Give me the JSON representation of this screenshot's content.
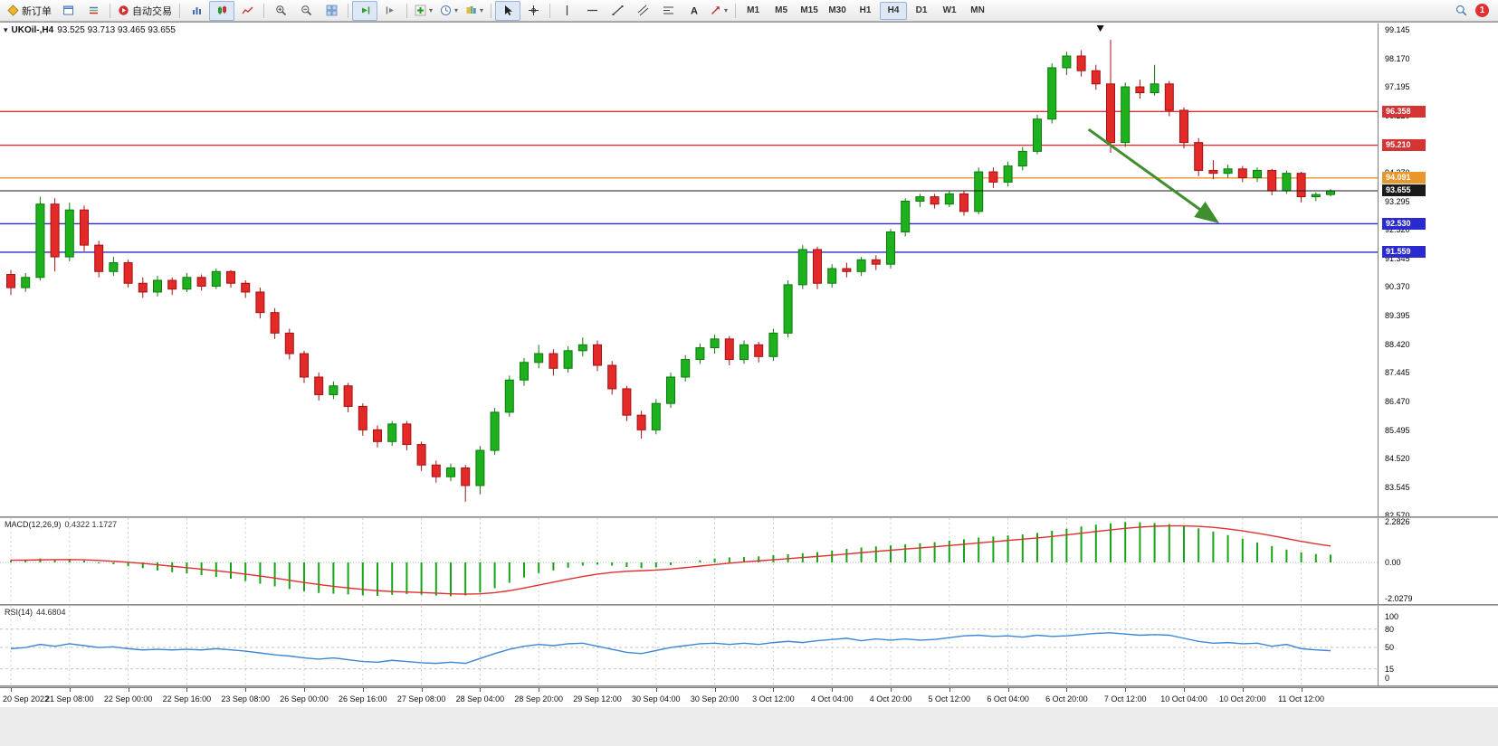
{
  "toolbar": {
    "new_order_label": "新订单",
    "autotrading_label": "自动交易",
    "timeframes": [
      "M1",
      "M5",
      "M15",
      "M30",
      "H1",
      "H4",
      "D1",
      "W1",
      "MN"
    ],
    "active_timeframe": "H4",
    "notification_badge": "1"
  },
  "main_chart": {
    "symbol_title": "UKOil-,H4",
    "ohlc_text": "93.525 93.713 93.465 93.655"
  },
  "macd_panel": {
    "label": "MACD(12,26,9)",
    "values": "0.4322 1.1727"
  },
  "rsi_panel": {
    "label": "RSI(14)",
    "value": "44.6804"
  },
  "chart_data": [
    {
      "type": "candlestick",
      "title": "UKOil H4",
      "bars_per_label": 4,
      "x_labels": [
        "20 Sep 2022",
        "21 Sep 08:00",
        "22 Sep 00:00",
        "22 Sep 16:00",
        "23 Sep 08:00",
        "26 Sep 00:00",
        "26 Sep 16:00",
        "27 Sep 08:00",
        "28 Sep 04:00",
        "28 Sep 20:00",
        "29 Sep 12:00",
        "30 Sep 04:00",
        "30 Sep 20:00",
        "3 Oct 12:00",
        "4 Oct 04:00",
        "4 Oct 20:00",
        "5 Oct 12:00",
        "6 Oct 04:00",
        "6 Oct 20:00",
        "7 Oct 12:00",
        "10 Oct 04:00",
        "10 Oct 20:00",
        "11 Oct 12:00"
      ],
      "ylim": [
        82.55,
        99.36
      ],
      "y_ticks": [
        "99.145",
        "98.170",
        "97.195",
        "96.220",
        "95.245",
        "94.270",
        "93.295",
        "92.320",
        "91.345",
        "90.370",
        "89.395",
        "88.420",
        "87.445",
        "86.470",
        "85.495",
        "84.520",
        "83.545",
        "82.570"
      ],
      "up_color": "#1db11d",
      "down_color": "#e42929",
      "candles": [
        [
          90.8,
          90.95,
          90.1,
          90.35
        ],
        [
          90.35,
          90.85,
          90.2,
          90.7
        ],
        [
          90.7,
          93.45,
          90.6,
          93.2
        ],
        [
          93.2,
          93.4,
          90.9,
          91.4
        ],
        [
          91.4,
          93.25,
          91.25,
          93.0
        ],
        [
          93.0,
          93.15,
          91.6,
          91.8
        ],
        [
          91.8,
          91.95,
          90.7,
          90.9
        ],
        [
          90.9,
          91.4,
          90.75,
          91.2
        ],
        [
          91.2,
          91.3,
          90.35,
          90.5
        ],
        [
          90.5,
          90.7,
          90.0,
          90.2
        ],
        [
          90.2,
          90.75,
          90.05,
          90.6
        ],
        [
          90.6,
          90.7,
          90.1,
          90.3
        ],
        [
          90.3,
          90.85,
          90.2,
          90.7
        ],
        [
          90.7,
          90.8,
          90.25,
          90.4
        ],
        [
          90.4,
          91.0,
          90.3,
          90.9
        ],
        [
          90.9,
          90.95,
          90.35,
          90.5
        ],
        [
          90.5,
          90.6,
          90.0,
          90.2
        ],
        [
          90.2,
          90.35,
          89.3,
          89.5
        ],
        [
          89.5,
          89.65,
          88.6,
          88.8
        ],
        [
          88.8,
          88.95,
          87.9,
          88.1
        ],
        [
          88.1,
          88.2,
          87.1,
          87.3
        ],
        [
          87.3,
          87.45,
          86.5,
          86.7
        ],
        [
          86.7,
          87.15,
          86.55,
          87.0
        ],
        [
          87.0,
          87.1,
          86.1,
          86.3
        ],
        [
          86.3,
          86.4,
          85.3,
          85.5
        ],
        [
          85.5,
          85.65,
          84.9,
          85.1
        ],
        [
          85.1,
          85.8,
          84.95,
          85.7
        ],
        [
          85.7,
          85.8,
          84.8,
          85.0
        ],
        [
          85.0,
          85.1,
          84.1,
          84.3
        ],
        [
          84.3,
          84.45,
          83.7,
          83.9
        ],
        [
          83.9,
          84.35,
          83.75,
          84.2
        ],
        [
          84.2,
          84.3,
          83.05,
          83.6
        ],
        [
          83.6,
          84.95,
          83.3,
          84.8
        ],
        [
          84.8,
          86.25,
          84.65,
          86.1
        ],
        [
          86.1,
          87.35,
          85.95,
          87.2
        ],
        [
          87.2,
          87.95,
          87.0,
          87.8
        ],
        [
          87.8,
          88.4,
          87.6,
          88.1
        ],
        [
          88.1,
          88.25,
          87.35,
          87.6
        ],
        [
          87.6,
          88.35,
          87.45,
          88.2
        ],
        [
          88.2,
          88.65,
          88.0,
          88.4
        ],
        [
          88.4,
          88.55,
          87.5,
          87.7
        ],
        [
          87.7,
          87.85,
          86.7,
          86.9
        ],
        [
          86.9,
          87.0,
          85.8,
          86.0
        ],
        [
          86.0,
          86.15,
          85.2,
          85.5
        ],
        [
          85.5,
          86.55,
          85.35,
          86.4
        ],
        [
          86.4,
          87.45,
          86.25,
          87.3
        ],
        [
          87.3,
          88.05,
          87.15,
          87.9
        ],
        [
          87.9,
          88.45,
          87.75,
          88.3
        ],
        [
          88.3,
          88.75,
          88.1,
          88.6
        ],
        [
          88.6,
          88.7,
          87.7,
          87.9
        ],
        [
          87.9,
          88.55,
          87.75,
          88.4
        ],
        [
          88.4,
          88.5,
          87.8,
          88.0
        ],
        [
          88.0,
          88.95,
          87.85,
          88.8
        ],
        [
          88.8,
          90.6,
          88.65,
          90.45
        ],
        [
          90.45,
          91.8,
          90.3,
          91.65
        ],
        [
          91.65,
          91.75,
          90.3,
          90.5
        ],
        [
          90.5,
          91.15,
          90.35,
          91.0
        ],
        [
          91.0,
          91.2,
          90.7,
          90.9
        ],
        [
          90.9,
          91.4,
          90.75,
          91.3
        ],
        [
          91.3,
          91.45,
          90.95,
          91.15
        ],
        [
          91.15,
          92.35,
          91.0,
          92.25
        ],
        [
          92.25,
          93.4,
          92.1,
          93.3
        ],
        [
          93.3,
          93.55,
          93.1,
          93.45
        ],
        [
          93.45,
          93.55,
          93.05,
          93.2
        ],
        [
          93.2,
          93.65,
          93.1,
          93.55
        ],
        [
          93.55,
          93.65,
          92.8,
          92.95
        ],
        [
          92.95,
          94.45,
          92.85,
          94.3
        ],
        [
          94.3,
          94.45,
          93.75,
          93.95
        ],
        [
          93.95,
          94.65,
          93.8,
          94.5
        ],
        [
          94.5,
          95.15,
          94.35,
          95.0
        ],
        [
          95.0,
          96.25,
          94.9,
          96.1
        ],
        [
          96.1,
          98.0,
          95.95,
          97.85
        ],
        [
          97.85,
          98.4,
          97.6,
          98.25
        ],
        [
          98.25,
          98.45,
          97.55,
          97.75
        ],
        [
          97.75,
          97.95,
          97.1,
          97.3
        ],
        [
          97.3,
          98.8,
          94.95,
          95.3
        ],
        [
          95.3,
          97.35,
          95.15,
          97.2
        ],
        [
          97.2,
          97.45,
          96.8,
          97.0
        ],
        [
          97.0,
          97.95,
          96.9,
          97.3
        ],
        [
          97.3,
          97.4,
          96.2,
          96.4
        ],
        [
          96.4,
          96.5,
          95.1,
          95.3
        ],
        [
          95.3,
          95.45,
          94.15,
          94.35
        ],
        [
          94.35,
          94.7,
          94.05,
          94.25
        ],
        [
          94.25,
          94.55,
          94.1,
          94.4
        ],
        [
          94.4,
          94.5,
          93.95,
          94.1
        ],
        [
          94.1,
          94.45,
          93.95,
          94.35
        ],
        [
          94.35,
          94.4,
          93.5,
          93.65
        ],
        [
          93.65,
          94.35,
          93.55,
          94.25
        ],
        [
          94.25,
          94.3,
          93.25,
          93.45
        ],
        [
          93.45,
          93.6,
          93.3,
          93.525
        ],
        [
          93.525,
          93.713,
          93.465,
          93.655
        ]
      ],
      "levels": [
        {
          "price": 96.358,
          "label": "96.358",
          "color": "#d53434"
        },
        {
          "price": 95.21,
          "label": "95.210",
          "color": "#d53434"
        },
        {
          "price": 94.091,
          "label": "94.091",
          "color": "#e8962e"
        },
        {
          "price": 92.53,
          "label": "92.530",
          "color": "#2a2ace"
        },
        {
          "price": 91.559,
          "label": "91.559",
          "color": "#2a2ace"
        }
      ],
      "current_price": {
        "price": 93.655,
        "label": "93.655",
        "color": "#1a1a1a"
      },
      "annotations": {
        "arrow": {
          "from_bar": 73.5,
          "from_price": 95.75,
          "to_bar": 82.2,
          "to_price": 92.62,
          "color": "#3f8f2f"
        },
        "high_marker_bar": 74.3
      }
    },
    {
      "type": "macd-histogram",
      "label": "MACD(12,26,9)",
      "current_values": "0.4322 1.1727",
      "ylim": [
        -2.344,
        2.493
      ],
      "y_ticks": [
        "2.2826",
        "0.00",
        "-2.0279"
      ],
      "signal_period": 9,
      "histogram_color": "#16a516",
      "signal_color": "#e03030",
      "histogram": [
        0.12,
        0.15,
        0.22,
        0.18,
        0.2,
        0.1,
        -0.05,
        -0.1,
        -0.22,
        -0.32,
        -0.45,
        -0.55,
        -0.62,
        -0.72,
        -0.82,
        -0.92,
        -1.05,
        -1.2,
        -1.35,
        -1.5,
        -1.62,
        -1.72,
        -1.76,
        -1.8,
        -1.85,
        -1.88,
        -1.82,
        -1.78,
        -1.82,
        -1.87,
        -1.9,
        -1.86,
        -1.7,
        -1.45,
        -1.15,
        -0.85,
        -0.6,
        -0.45,
        -0.3,
        -0.18,
        -0.12,
        -0.18,
        -0.26,
        -0.32,
        -0.28,
        -0.15,
        0.02,
        0.12,
        0.22,
        0.28,
        0.3,
        0.34,
        0.4,
        0.46,
        0.52,
        0.58,
        0.66,
        0.76,
        0.84,
        0.9,
        0.96,
        1.02,
        1.08,
        1.14,
        1.22,
        1.3,
        1.4,
        1.46,
        1.52,
        1.58,
        1.66,
        1.78,
        1.9,
        2.02,
        2.12,
        2.2,
        2.28,
        2.26,
        2.22,
        2.16,
        2.06,
        1.92,
        1.74,
        1.54,
        1.34,
        1.12,
        0.92,
        0.72,
        0.56,
        0.47,
        0.4322
      ]
    },
    {
      "type": "rsi-line",
      "label": "RSI(14)",
      "current_value": "44.6804",
      "ylim": [
        -12,
        118
      ],
      "y_ticks": [
        "100",
        "80",
        "50",
        "15",
        "0"
      ],
      "level_lines": [
        80,
        50,
        15
      ],
      "line_color": "#3c87d6",
      "values": [
        48,
        50,
        55,
        52,
        56,
        53,
        50,
        51,
        48,
        46,
        47,
        46,
        47,
        46,
        48,
        46,
        44,
        41,
        38,
        36,
        33,
        31,
        33,
        30,
        27,
        26,
        29,
        27,
        25,
        24,
        26,
        24,
        32,
        40,
        47,
        52,
        55,
        53,
        56,
        57,
        52,
        47,
        42,
        40,
        45,
        50,
        53,
        56,
        57,
        55,
        57,
        55,
        58,
        60,
        58,
        61,
        63,
        65,
        61,
        64,
        62,
        64,
        62,
        63,
        66,
        69,
        70,
        68,
        69,
        67,
        70,
        68,
        69,
        71,
        73,
        74,
        72,
        70,
        71,
        70,
        65,
        60,
        57,
        58,
        56,
        57,
        52,
        55,
        48,
        46,
        44.68
      ]
    }
  ]
}
